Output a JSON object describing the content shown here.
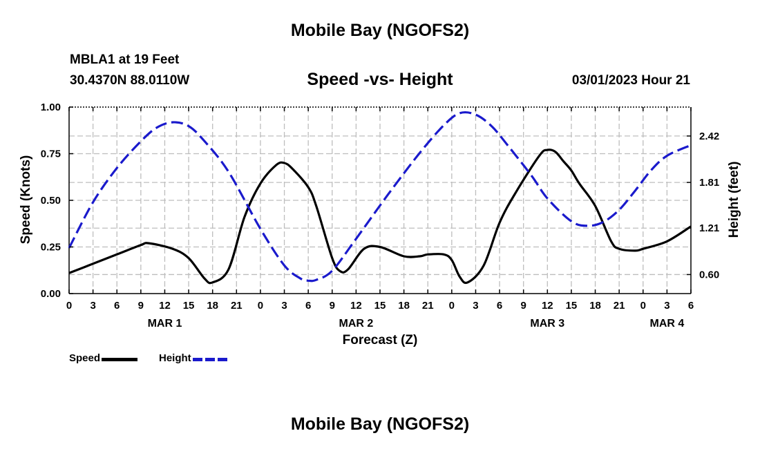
{
  "header": {
    "title": "Mobile Bay (NGOFS2)",
    "station": "MBLA1 at 19 Feet",
    "coords": "30.4370N  88.0110W",
    "subtitle": "Speed -vs- Height",
    "datetime": "03/01/2023 Hour 21"
  },
  "footer": {
    "title": "Mobile Bay (NGOFS2)"
  },
  "legend": {
    "speed_label": "Speed",
    "height_label": "Height"
  },
  "chart_data": {
    "type": "line",
    "title": "Speed -vs- Height",
    "xlabel": "Forecast (Z)",
    "ylabel": "Speed (Knots)",
    "y2label": "Height (feet)",
    "x_range_hours": [
      0,
      78
    ],
    "ylim": [
      0,
      1
    ],
    "y2lim": [
      0.35,
      2.8
    ],
    "x_ticks": [
      {
        "h": 0,
        "label": "0"
      },
      {
        "h": 3,
        "label": "3"
      },
      {
        "h": 6,
        "label": "6"
      },
      {
        "h": 9,
        "label": "9"
      },
      {
        "h": 12,
        "label": "12"
      },
      {
        "h": 15,
        "label": "15"
      },
      {
        "h": 18,
        "label": "18"
      },
      {
        "h": 21,
        "label": "21"
      },
      {
        "h": 24,
        "label": "0"
      },
      {
        "h": 27,
        "label": "3"
      },
      {
        "h": 30,
        "label": "6"
      },
      {
        "h": 33,
        "label": "9"
      },
      {
        "h": 36,
        "label": "12"
      },
      {
        "h": 39,
        "label": "15"
      },
      {
        "h": 42,
        "label": "18"
      },
      {
        "h": 45,
        "label": "21"
      },
      {
        "h": 48,
        "label": "0"
      },
      {
        "h": 51,
        "label": "3"
      },
      {
        "h": 54,
        "label": "6"
      },
      {
        "h": 57,
        "label": "9"
      },
      {
        "h": 60,
        "label": "12"
      },
      {
        "h": 63,
        "label": "15"
      },
      {
        "h": 66,
        "label": "18"
      },
      {
        "h": 69,
        "label": "21"
      },
      {
        "h": 72,
        "label": "0"
      },
      {
        "h": 75,
        "label": "3"
      },
      {
        "h": 78,
        "label": "6"
      }
    ],
    "date_labels": [
      {
        "h": 12,
        "label": "MAR 1"
      },
      {
        "h": 36,
        "label": "MAR 2"
      },
      {
        "h": 60,
        "label": "MAR 3"
      },
      {
        "h": 75,
        "label": "MAR 4"
      }
    ],
    "y_ticks": [
      {
        "v": 0,
        "label": "0.00"
      },
      {
        "v": 0.25,
        "label": "0.25"
      },
      {
        "v": 0.5,
        "label": "0.50"
      },
      {
        "v": 0.75,
        "label": "0.75"
      },
      {
        "v": 1,
        "label": "1.00"
      }
    ],
    "y2_ticks": [
      {
        "v": 0.6,
        "label": "0.60"
      },
      {
        "v": 1.21,
        "label": "1.21"
      },
      {
        "v": 1.81,
        "label": "1.81"
      },
      {
        "v": 2.42,
        "label": "2.42"
      }
    ],
    "series": [
      {
        "name": "Speed",
        "axis": "left",
        "color": "#000000",
        "dash": "solid",
        "x": [
          0,
          3,
          6,
          9,
          10,
          13,
          15,
          17,
          18,
          20,
          22,
          24,
          26,
          27,
          28,
          30,
          31,
          33,
          34,
          35,
          37,
          39,
          42,
          44,
          45,
          47,
          48,
          49,
          50,
          52,
          54,
          56,
          59,
          60,
          61,
          62,
          63,
          64,
          66,
          68,
          69,
          71,
          72,
          75,
          78
        ],
        "values": [
          0.11,
          0.16,
          0.21,
          0.26,
          0.27,
          0.24,
          0.19,
          0.08,
          0.06,
          0.13,
          0.41,
          0.59,
          0.69,
          0.7,
          0.67,
          0.57,
          0.47,
          0.19,
          0.12,
          0.13,
          0.24,
          0.25,
          0.2,
          0.2,
          0.21,
          0.21,
          0.18,
          0.09,
          0.06,
          0.15,
          0.38,
          0.54,
          0.74,
          0.77,
          0.76,
          0.71,
          0.66,
          0.59,
          0.47,
          0.28,
          0.24,
          0.23,
          0.24,
          0.28,
          0.36
        ]
      },
      {
        "name": "Height",
        "axis": "right",
        "color": "#1a1acc",
        "dash": "dashed",
        "x": [
          0,
          3,
          6,
          9,
          11,
          13,
          15,
          17,
          20,
          24,
          27,
          29,
          30,
          31,
          33,
          36,
          40,
          44,
          47,
          49,
          51,
          53,
          55,
          58,
          60,
          63,
          65,
          67,
          69,
          71,
          73,
          75,
          78
        ],
        "values": [
          0.95,
          1.55,
          2.0,
          2.35,
          2.53,
          2.6,
          2.55,
          2.35,
          1.95,
          1.2,
          0.72,
          0.55,
          0.52,
          0.53,
          0.65,
          1.07,
          1.65,
          2.2,
          2.56,
          2.72,
          2.7,
          2.55,
          2.3,
          1.9,
          1.6,
          1.3,
          1.24,
          1.29,
          1.45,
          1.7,
          1.97,
          2.16,
          2.3
        ]
      }
    ]
  }
}
